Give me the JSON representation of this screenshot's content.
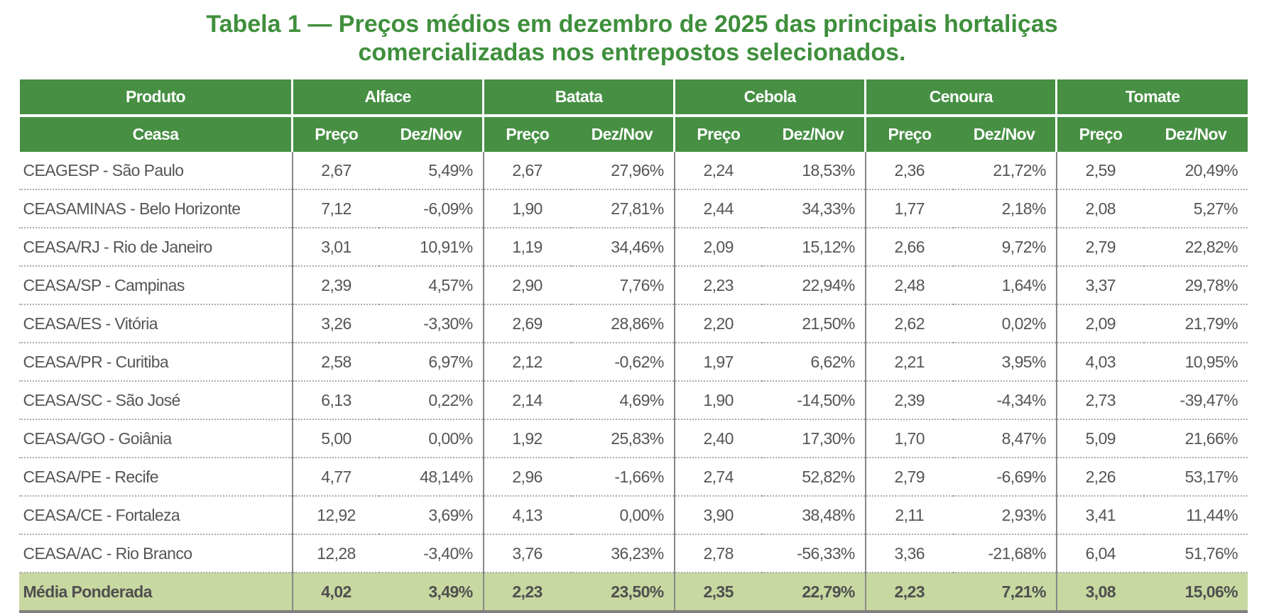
{
  "title": "Tabela 1 — Preços médios em dezembro de 2025 das principais hortaliças comercializadas nos entrepostos selecionados.",
  "title_line1": "Tabela 1 — Preços médios em dezembro de 2025 das principais hortaliças",
  "title_line2": "comercializadas nos entrepostos selecionados.",
  "header": {
    "produto": "Produto",
    "ceasa": "Ceasa",
    "products": [
      "Alface",
      "Batata",
      "Cebola",
      "Cenoura",
      "Tomate"
    ],
    "preco": "Preço",
    "dez_nov": "Dez/Nov"
  },
  "colors": {
    "header_green": "#468f43",
    "title_green": "#3f8f3c",
    "average_row": "#c8d8a1"
  },
  "rows": [
    {
      "ceasa": "CEAGESP - São Paulo",
      "values": [
        "2,67",
        "5,49%",
        "2,67",
        "27,96%",
        "2,24",
        "18,53%",
        "2,36",
        "21,72%",
        "2,59",
        "20,49%"
      ]
    },
    {
      "ceasa": "CEASAMINAS - Belo Horizonte",
      "values": [
        "7,12",
        "-6,09%",
        "1,90",
        "27,81%",
        "2,44",
        "34,33%",
        "1,77",
        "2,18%",
        "2,08",
        "5,27%"
      ]
    },
    {
      "ceasa": "CEASA/RJ - Rio de Janeiro",
      "values": [
        "3,01",
        "10,91%",
        "1,19",
        "34,46%",
        "2,09",
        "15,12%",
        "2,66",
        "9,72%",
        "2,79",
        "22,82%"
      ]
    },
    {
      "ceasa": "CEASA/SP - Campinas",
      "values": [
        "2,39",
        "4,57%",
        "2,90",
        "7,76%",
        "2,23",
        "22,94%",
        "2,48",
        "1,64%",
        "3,37",
        "29,78%"
      ]
    },
    {
      "ceasa": "CEASA/ES - Vitória",
      "values": [
        "3,26",
        "-3,30%",
        "2,69",
        "28,86%",
        "2,20",
        "21,50%",
        "2,62",
        "0,02%",
        "2,09",
        "21,79%"
      ]
    },
    {
      "ceasa": "CEASA/PR - Curitiba",
      "values": [
        "2,58",
        "6,97%",
        "2,12",
        "-0,62%",
        "1,97",
        "6,62%",
        "2,21",
        "3,95%",
        "4,03",
        "10,95%"
      ]
    },
    {
      "ceasa": "CEASA/SC - São José",
      "values": [
        "6,13",
        "0,22%",
        "2,14",
        "4,69%",
        "1,90",
        "-14,50%",
        "2,39",
        "-4,34%",
        "2,73",
        "-39,47%"
      ]
    },
    {
      "ceasa": "CEASA/GO - Goiânia",
      "values": [
        "5,00",
        "0,00%",
        "1,92",
        "25,83%",
        "2,40",
        "17,30%",
        "1,70",
        "8,47%",
        "5,09",
        "21,66%"
      ]
    },
    {
      "ceasa": "CEASA/PE - Recife",
      "values": [
        "4,77",
        "48,14%",
        "2,96",
        "-1,66%",
        "2,74",
        "52,82%",
        "2,79",
        "-6,69%",
        "2,26",
        "53,17%"
      ]
    },
    {
      "ceasa": "CEASA/CE - Fortaleza",
      "values": [
        "12,92",
        "3,69%",
        "4,13",
        "0,00%",
        "3,90",
        "38,48%",
        "2,11",
        "2,93%",
        "3,41",
        "11,44%"
      ]
    },
    {
      "ceasa": "CEASA/AC - Rio Branco",
      "values": [
        "12,28",
        "-3,40%",
        "3,76",
        "36,23%",
        "2,78",
        "-56,33%",
        "3,36",
        "-21,68%",
        "6,04",
        "51,76%"
      ]
    }
  ],
  "average": {
    "ceasa": "Média Ponderada",
    "values": [
      "4,02",
      "3,49%",
      "2,23",
      "23,50%",
      "2,35",
      "22,79%",
      "2,23",
      "7,21%",
      "3,08",
      "15,06%"
    ]
  }
}
